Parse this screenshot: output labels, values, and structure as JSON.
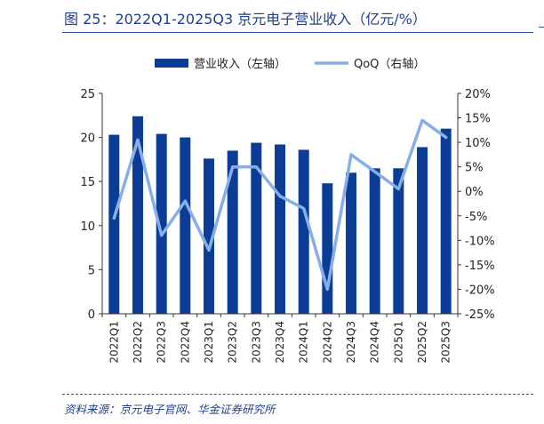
{
  "title": "图 25：2022Q1-2025Q3 京元电子营业收入（亿元/%）",
  "source": "资料来源：京元电子官网、华金证券研究所",
  "colors": {
    "bar": "#0c3d96",
    "line": "#88aee8",
    "text": "#1f3f8f"
  },
  "chart_data": {
    "type": "bar",
    "categories": [
      "2022Q1",
      "2022Q2",
      "2022Q3",
      "2022Q4",
      "2023Q1",
      "2023Q2",
      "2023Q3",
      "2023Q4",
      "2024Q1",
      "2024Q2",
      "2024Q3",
      "2024Q4",
      "2025Q1",
      "2025Q2",
      "2025Q3"
    ],
    "series": [
      {
        "name": "营业收入（左轴）",
        "type": "bar",
        "axis": "left",
        "values": [
          20.3,
          22.4,
          20.4,
          20.0,
          17.6,
          18.5,
          19.4,
          19.2,
          18.6,
          14.8,
          16.0,
          16.5,
          16.5,
          18.9,
          21.0
        ]
      },
      {
        "name": "QoQ（右轴）",
        "type": "line",
        "axis": "right",
        "values": [
          -5.5,
          10.5,
          -9.0,
          -2.0,
          -12.0,
          5.0,
          5.0,
          -1.0,
          -3.5,
          -20.0,
          7.5,
          4.0,
          0.5,
          14.5,
          11.0
        ]
      }
    ],
    "left_axis": {
      "min": 0,
      "max": 25,
      "ticks": [
        "0",
        "5",
        "10",
        "15",
        "20",
        "25"
      ]
    },
    "right_axis": {
      "min": -25,
      "max": 20,
      "ticks": [
        "-25%",
        "-20%",
        "-15%",
        "-10%",
        "-5%",
        "0%",
        "5%",
        "10%",
        "15%",
        "20%"
      ]
    },
    "legend_position": "top-center",
    "grid": false
  }
}
